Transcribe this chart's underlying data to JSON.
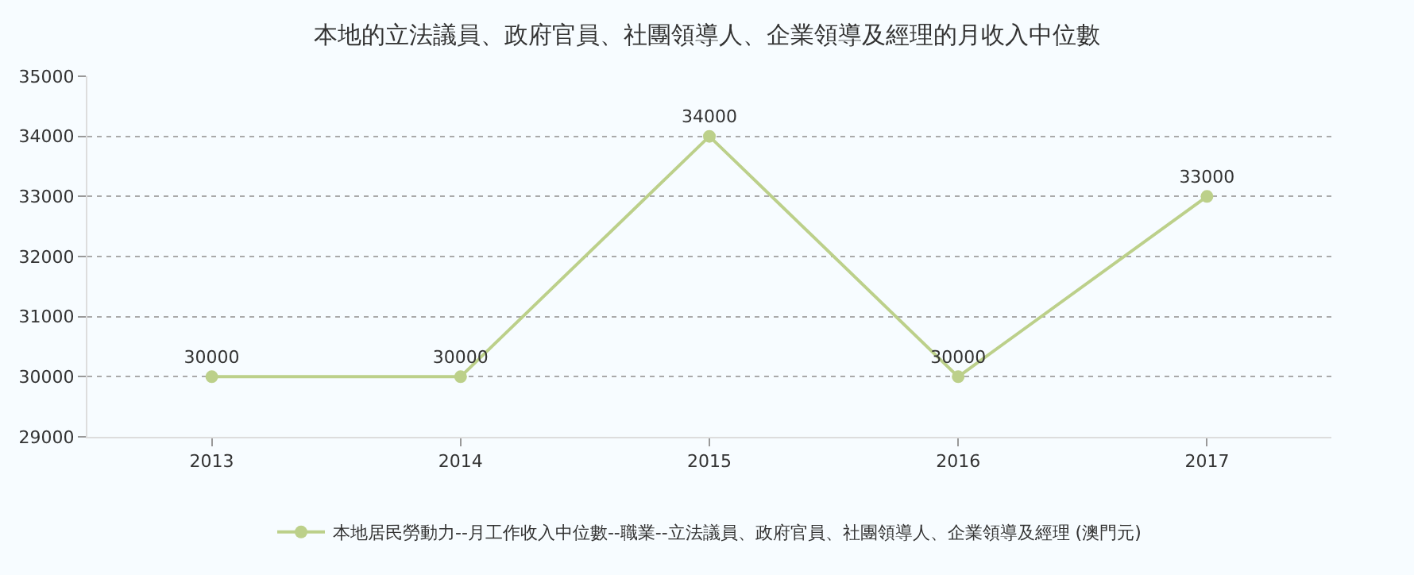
{
  "chart_data": {
    "type": "line",
    "title": "本地的立法議員、政府官員、社團領導人、企業領導及經理的月收入中位數",
    "categories": [
      "2013",
      "2014",
      "2015",
      "2016",
      "2017"
    ],
    "series": [
      {
        "name": "本地居民勞動力--月工作收入中位數--職業--立法議員、政府官員、社團領導人、企業領導及經理 (澳門元)",
        "color": "#bcd08a",
        "values": [
          30000,
          30000,
          34000,
          30000,
          33000
        ]
      }
    ],
    "ylim": [
      29000,
      35000
    ],
    "yticks": [
      29000,
      30000,
      31000,
      32000,
      33000,
      34000,
      35000
    ],
    "grid": "y",
    "legend": "bottom",
    "marker": "circle",
    "line_style": "solid",
    "data_labels": true
  }
}
